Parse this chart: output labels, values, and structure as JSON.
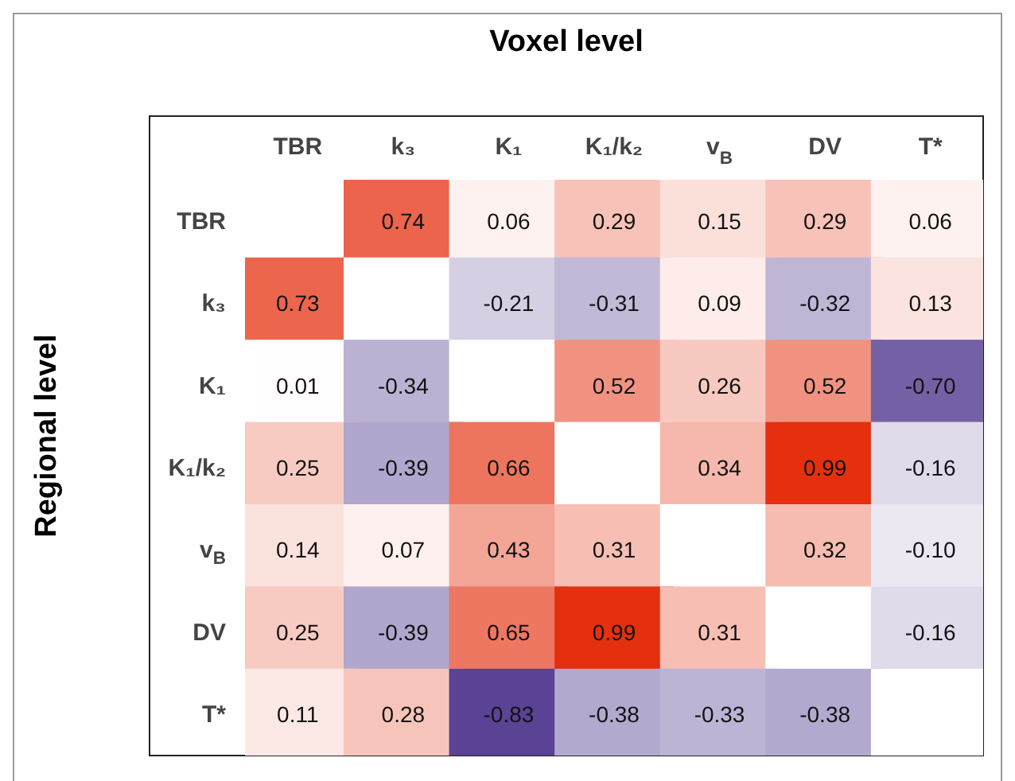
{
  "chart_data": {
    "type": "heatmap",
    "xlabel": "Voxel level",
    "ylabel": "Regional level",
    "categories": [
      "TBR",
      "k₃",
      "K₁",
      "K₁/k₂",
      "v$_{B}$",
      "DV",
      "T*"
    ],
    "y_categories": [
      "TBR",
      "k₃",
      "K₁",
      "K₁/k₂",
      "v$_{B}$",
      "DV",
      "T*"
    ],
    "cells": [
      [
        null,
        0.74,
        0.06,
        0.29,
        0.15,
        0.29,
        0.06
      ],
      [
        0.73,
        null,
        -0.21,
        -0.31,
        0.09,
        -0.32,
        0.13
      ],
      [
        0.01,
        -0.34,
        null,
        0.52,
        0.26,
        0.52,
        -0.7
      ],
      [
        0.25,
        -0.39,
        0.66,
        null,
        0.34,
        0.99,
        -0.16
      ],
      [
        0.14,
        0.07,
        0.43,
        0.31,
        null,
        0.32,
        -0.1
      ],
      [
        0.25,
        -0.39,
        0.65,
        0.99,
        0.31,
        null,
        -0.16
      ],
      [
        0.11,
        0.28,
        -0.83,
        -0.38,
        -0.33,
        -0.38,
        null
      ]
    ],
    "cell_labels": [
      [
        null,
        "0.74",
        "0.06",
        "0.29",
        "0.15",
        "0.29",
        "0.06"
      ],
      [
        "0.73",
        null,
        "-0.21",
        "-0.31",
        "0.09",
        "-0.32",
        "0.13"
      ],
      [
        "0.01",
        "-0.34",
        null,
        "0.52",
        "0.26",
        "0.52",
        "-0.70"
      ],
      [
        "0.25",
        "-0.39",
        "0.66",
        null,
        "0.34",
        "0.99",
        "-0.16"
      ],
      [
        "0.14",
        "0.07",
        "0.43",
        "0.31",
        null,
        "0.32",
        "-0.10"
      ],
      [
        "0.25",
        "-0.39",
        "0.65",
        "0.99",
        "0.31",
        null,
        "-0.16"
      ],
      [
        "0.11",
        "0.28",
        "-0.83",
        "-0.38",
        "-0.33",
        "-0.38",
        null
      ]
    ]
  }
}
